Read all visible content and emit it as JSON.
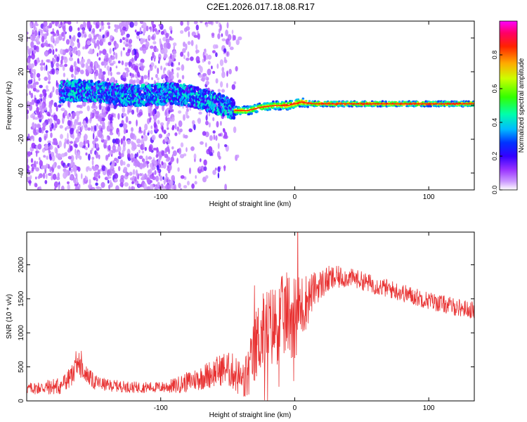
{
  "title": "C2E1.2026.017.18.08.R17",
  "colors": {
    "snr_line": "#e83232",
    "frame": "#000000"
  },
  "chart_data": [
    {
      "type": "heatmap",
      "name": "spectrogram",
      "xlabel": "Height of straight line (km)",
      "ylabel": "Frequency (Hz)",
      "xlim": [
        -200,
        134
      ],
      "ylim": [
        -50,
        50
      ],
      "xticks": [
        -100,
        0,
        100
      ],
      "yticks": [
        -40,
        -20,
        0,
        20,
        40
      ],
      "colorbar": {
        "label": "Normalized spectral amplitude",
        "range": [
          0,
          1
        ],
        "ticks": [
          0.0,
          0.2,
          0.4,
          0.6,
          0.8
        ],
        "tick_labels": [
          "0.0",
          "0.2",
          "0.4",
          "0.6",
          "0.8"
        ],
        "colormap": [
          "#ffffff",
          "#cc99ff",
          "#8a2be2",
          "#3300ff",
          "#0000ff",
          "#00ccff",
          "#00ff66",
          "#ffff00",
          "#ff8800",
          "#ff0000",
          "#ff00ff"
        ]
      },
      "frequency_trace": [
        {
          "x": -175,
          "y": 8
        },
        {
          "x": -160,
          "y": 9
        },
        {
          "x": -145,
          "y": 8
        },
        {
          "x": -130,
          "y": 6
        },
        {
          "x": -110,
          "y": 6
        },
        {
          "x": -95,
          "y": 7
        },
        {
          "x": -80,
          "y": 6
        },
        {
          "x": -70,
          "y": 4
        },
        {
          "x": -62,
          "y": 2
        },
        {
          "x": -52,
          "y": 0
        },
        {
          "x": -45,
          "y": -3
        },
        {
          "x": -35,
          "y": -3
        },
        {
          "x": -25,
          "y": -1
        },
        {
          "x": -15,
          "y": 0
        },
        {
          "x": -5,
          "y": 0
        },
        {
          "x": 5,
          "y": 2
        },
        {
          "x": 15,
          "y": 1
        },
        {
          "x": 30,
          "y": 1
        },
        {
          "x": 60,
          "y": 1
        },
        {
          "x": 100,
          "y": 1
        },
        {
          "x": 134,
          "y": 1
        }
      ]
    },
    {
      "type": "line",
      "name": "snr",
      "xlabel": "Height of straight line (km)",
      "ylabel": "SNR (10 * v/v)",
      "xlim": [
        -200,
        134
      ],
      "ylim": [
        0,
        2480
      ],
      "xticks": [
        -100,
        0,
        100
      ],
      "yticks": [
        0,
        500,
        1000,
        1500,
        2000
      ],
      "envelope": [
        {
          "x": -200,
          "y": 180
        },
        {
          "x": -185,
          "y": 200
        },
        {
          "x": -175,
          "y": 220
        },
        {
          "x": -168,
          "y": 330
        },
        {
          "x": -162,
          "y": 520
        },
        {
          "x": -158,
          "y": 450
        },
        {
          "x": -150,
          "y": 280
        },
        {
          "x": -140,
          "y": 230
        },
        {
          "x": -120,
          "y": 200
        },
        {
          "x": -100,
          "y": 200
        },
        {
          "x": -90,
          "y": 220
        },
        {
          "x": -80,
          "y": 280
        },
        {
          "x": -70,
          "y": 340
        },
        {
          "x": -60,
          "y": 420
        },
        {
          "x": -52,
          "y": 480
        },
        {
          "x": -45,
          "y": 420
        },
        {
          "x": -38,
          "y": 260
        },
        {
          "x": -33,
          "y": 500
        },
        {
          "x": -28,
          "y": 900
        },
        {
          "x": -22,
          "y": 1050
        },
        {
          "x": -16,
          "y": 1100
        },
        {
          "x": -10,
          "y": 1200
        },
        {
          "x": -5,
          "y": 1300
        },
        {
          "x": 0,
          "y": 1250
        },
        {
          "x": 8,
          "y": 1450
        },
        {
          "x": 15,
          "y": 1650
        },
        {
          "x": 25,
          "y": 1780
        },
        {
          "x": 35,
          "y": 1820
        },
        {
          "x": 45,
          "y": 1800
        },
        {
          "x": 60,
          "y": 1700
        },
        {
          "x": 75,
          "y": 1620
        },
        {
          "x": 90,
          "y": 1530
        },
        {
          "x": 105,
          "y": 1450
        },
        {
          "x": 120,
          "y": 1380
        },
        {
          "x": 134,
          "y": 1330
        }
      ],
      "noise_amplitude": [
        {
          "x": -200,
          "y": 80
        },
        {
          "x": -165,
          "y": 160
        },
        {
          "x": -140,
          "y": 90
        },
        {
          "x": -100,
          "y": 80
        },
        {
          "x": -60,
          "y": 220
        },
        {
          "x": -40,
          "y": 300
        },
        {
          "x": -25,
          "y": 600
        },
        {
          "x": 0,
          "y": 650
        },
        {
          "x": 15,
          "y": 250
        },
        {
          "x": 40,
          "y": 140
        },
        {
          "x": 134,
          "y": 130
        }
      ]
    }
  ]
}
